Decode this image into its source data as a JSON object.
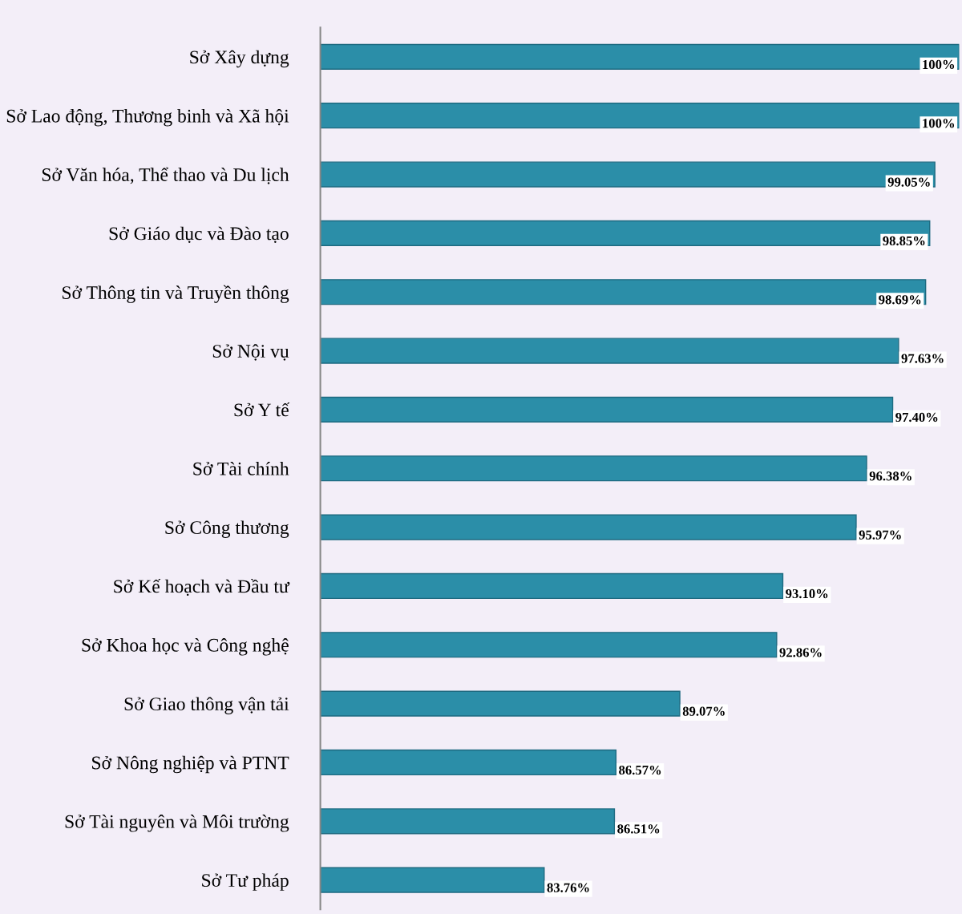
{
  "chart_data": {
    "type": "bar",
    "orientation": "horizontal",
    "categories": [
      "Sở Xây dựng",
      "Sở Lao động, Thương binh và Xã hội",
      "Sở Văn hóa, Thể thao và Du lịch",
      "Sở Giáo dục và Đào tạo",
      "Sở Thông tin và Truyền thông",
      "Sở Nội vụ",
      "Sở Y tế",
      "Sở Tài chính",
      "Sở Công thương",
      "Sở Kế hoạch và Đầu tư",
      "Sở Khoa học và Công nghệ",
      "Sở Giao thông vận tải",
      "Sở Nông nghiệp và PTNT",
      "Sở Tài nguyên và Môi trường",
      "Sở Tư pháp"
    ],
    "values": [
      100,
      100,
      99.05,
      98.85,
      98.69,
      97.63,
      97.4,
      96.38,
      95.97,
      93.1,
      92.86,
      89.07,
      86.57,
      86.51,
      83.76
    ],
    "value_labels": [
      "100%",
      "100%",
      "99.05%",
      "98.85%",
      "98.69%",
      "97.63%",
      "97.40%",
      "96.38%",
      "95.97%",
      "93.10%",
      "92.86%",
      "89.07%",
      "86.57%",
      "86.51%",
      "83.76%"
    ],
    "color": "#2b8ea8",
    "xlim": [
      75,
      100
    ],
    "grid": false,
    "legend": false
  }
}
